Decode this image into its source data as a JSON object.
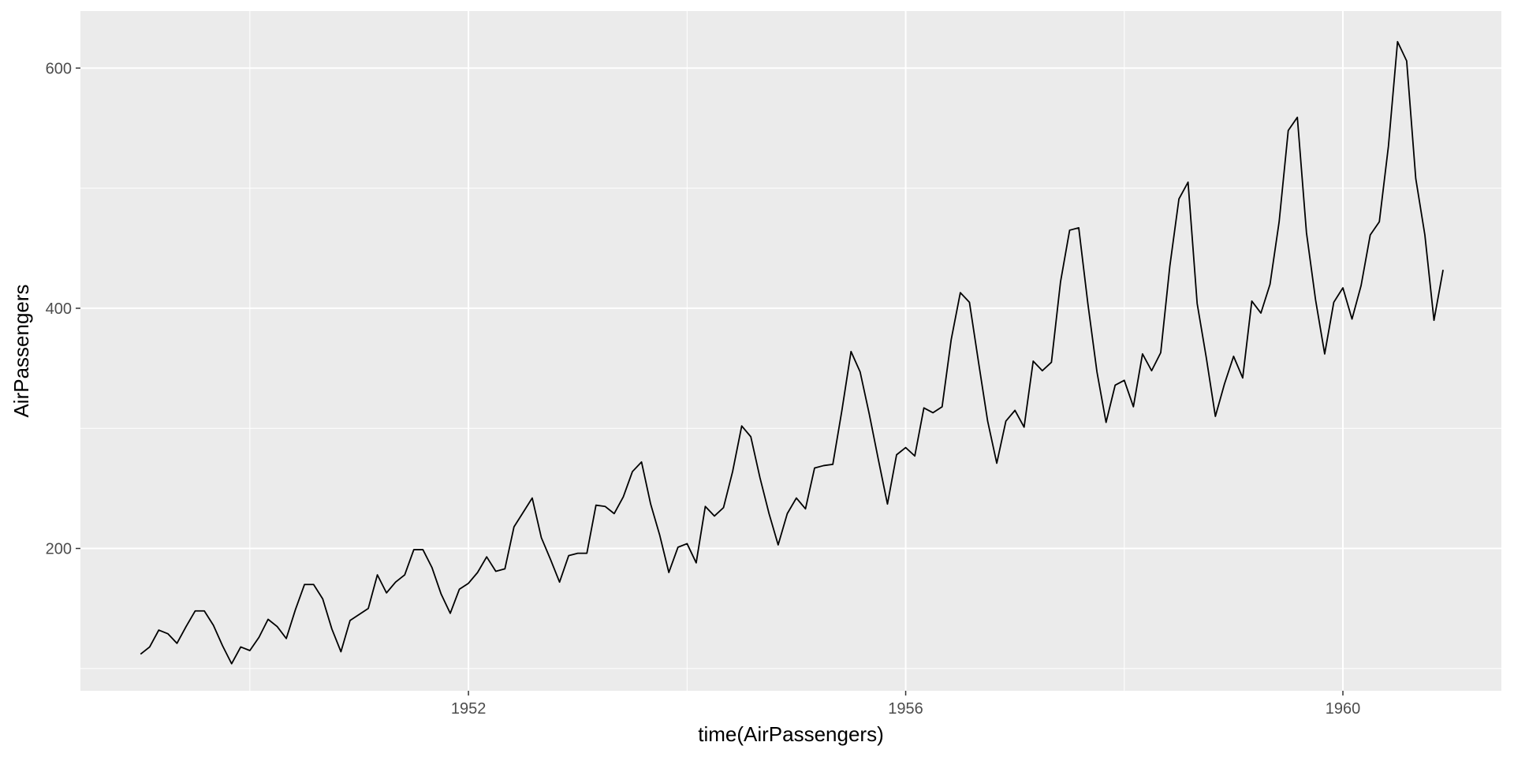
{
  "chart_data": {
    "type": "line",
    "title": "",
    "xlabel": "time(AirPassengers)",
    "ylabel": "AirPassengers",
    "x_start": 1949,
    "x_step": 0.08333333,
    "xlim": [
      1948.45,
      1961.45
    ],
    "ylim": [
      81.5,
      647.5
    ],
    "x_major_ticks": [
      1952,
      1956,
      1960
    ],
    "x_minor_ticks": [
      1950,
      1954,
      1958
    ],
    "y_major_ticks": [
      200,
      400,
      600
    ],
    "y_minor_ticks": [
      100,
      300,
      500
    ],
    "grid": true,
    "background": "#ebebeb",
    "line_color": "#000000",
    "series": [
      {
        "values": [
          112,
          118,
          132,
          129,
          121,
          135,
          148,
          148,
          136,
          119,
          104,
          118,
          115,
          126,
          141,
          135,
          125,
          149,
          170,
          170,
          158,
          133,
          114,
          140,
          145,
          150,
          178,
          163,
          172,
          178,
          199,
          199,
          184,
          162,
          146,
          166,
          171,
          180,
          193,
          181,
          183,
          218,
          230,
          242,
          209,
          191,
          172,
          194,
          196,
          196,
          236,
          235,
          229,
          243,
          264,
          272,
          237,
          211,
          180,
          201,
          204,
          188,
          235,
          227,
          234,
          264,
          302,
          293,
          259,
          229,
          203,
          229,
          242,
          233,
          267,
          269,
          270,
          315,
          364,
          347,
          312,
          274,
          237,
          278,
          284,
          277,
          317,
          313,
          318,
          374,
          413,
          405,
          355,
          306,
          271,
          306,
          315,
          301,
          356,
          348,
          355,
          422,
          465,
          467,
          404,
          347,
          305,
          336,
          340,
          318,
          362,
          348,
          363,
          435,
          491,
          505,
          404,
          359,
          310,
          337,
          360,
          342,
          406,
          396,
          420,
          472,
          548,
          559,
          463,
          407,
          362,
          405,
          417,
          391,
          419,
          461,
          472,
          535,
          622,
          606,
          508,
          461,
          390,
          432
        ]
      }
    ]
  }
}
